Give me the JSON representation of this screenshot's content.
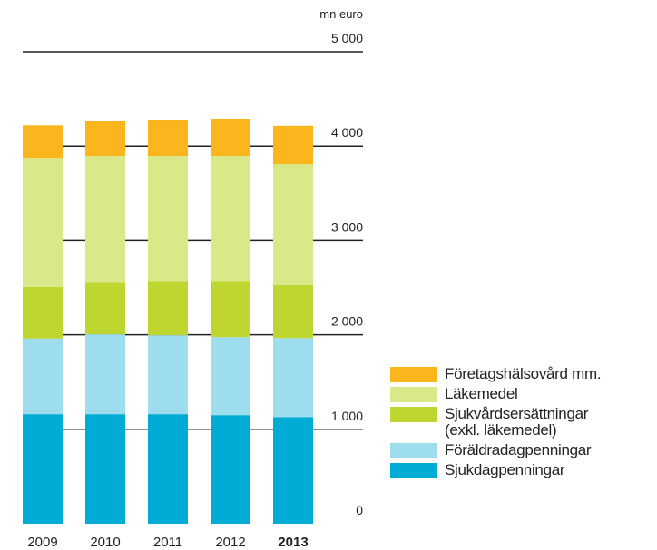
{
  "chart_data": {
    "type": "stacked_bar",
    "y_label": "mn euro",
    "categories": [
      "2009",
      "2010",
      "2011",
      "2012",
      "2013"
    ],
    "series": [
      {
        "name": "Sjukdagpenningar",
        "color": "#00acd4",
        "values": [
          1160,
          1160,
          1160,
          1150,
          1130
        ]
      },
      {
        "name": "Föräldradagpenningar",
        "color": "#9ddded",
        "values": [
          800,
          845,
          835,
          825,
          835
        ]
      },
      {
        "name": "Sjukvårdsersättningar\n(exkl. läkemedel)",
        "color": "#bfd630",
        "values": [
          545,
          555,
          575,
          595,
          565
        ]
      },
      {
        "name": "Läkemedel",
        "color": "#d9e98a",
        "values": [
          1370,
          1335,
          1325,
          1325,
          1280
        ]
      },
      {
        "name": "Företagshälsovård mm.",
        "color": "#fbb61e",
        "values": [
          345,
          375,
          385,
          395,
          405
        ]
      }
    ],
    "ylim": [
      0,
      5000
    ],
    "yticks": [
      {
        "value": 0,
        "label": "0"
      },
      {
        "value": 1000,
        "label": "1 000"
      },
      {
        "value": 2000,
        "label": "2 000"
      },
      {
        "value": 3000,
        "label": "3 000"
      },
      {
        "value": 4000,
        "label": "4 000"
      },
      {
        "value": 5000,
        "label": "5 000"
      }
    ],
    "grid": true,
    "highlight_last_category": true
  }
}
